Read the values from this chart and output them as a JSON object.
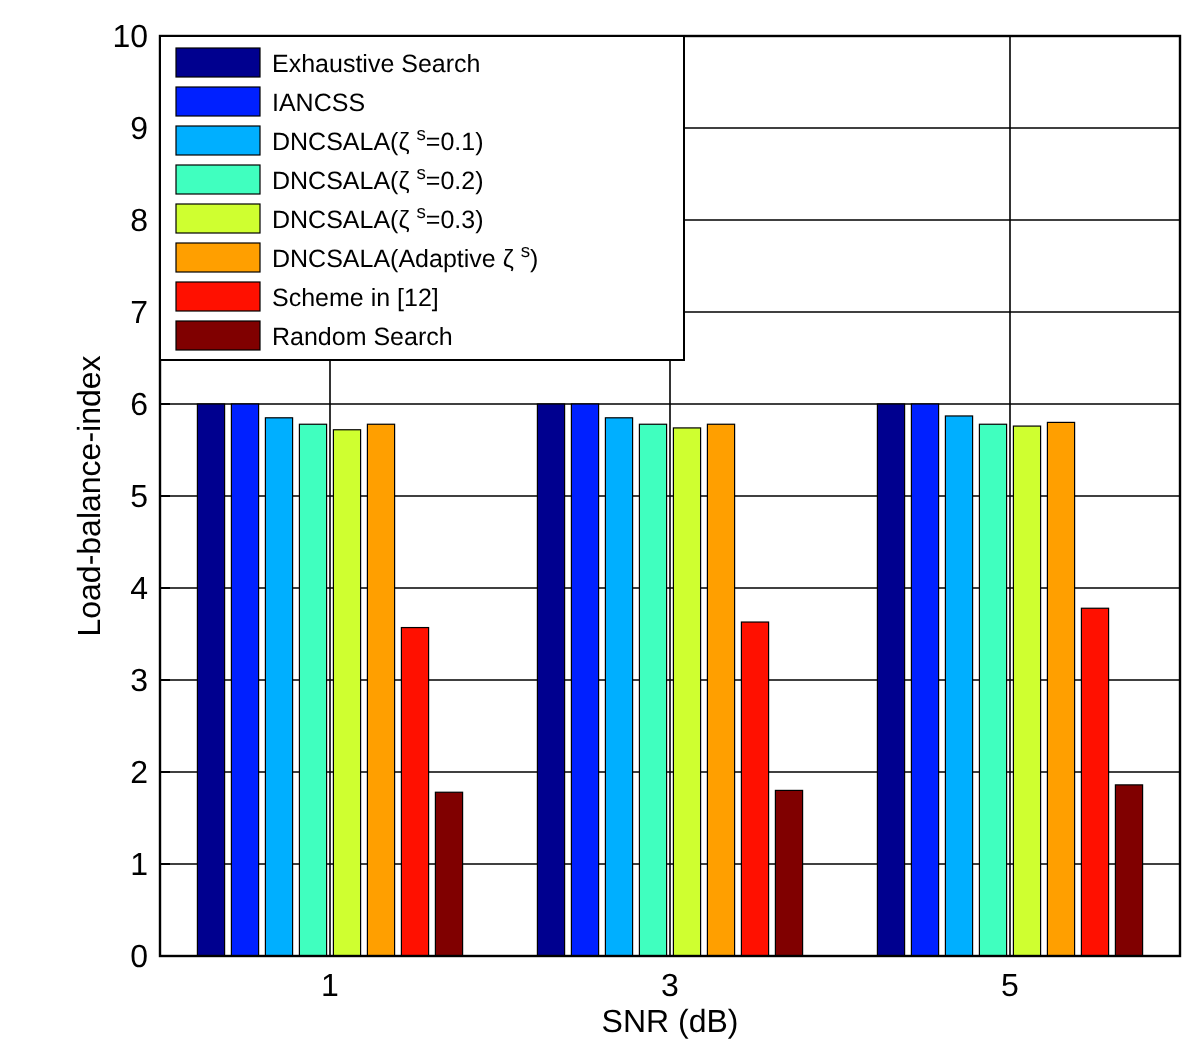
{
  "chart_data": {
    "type": "bar",
    "xlabel": "SNR (dB)",
    "ylabel": "Load-balance-index",
    "categories": [
      "1",
      "3",
      "5"
    ],
    "series": [
      {
        "name": "Exhaustive Search",
        "color": "#00008f",
        "values": [
          6,
          6,
          6
        ]
      },
      {
        "name": "IANCSS",
        "color": "#0020ff",
        "values": [
          6,
          6,
          6
        ]
      },
      {
        "name": "DNCSALA(ζ $^{s}$=0.1)",
        "color": "#00afff",
        "values": [
          5.85,
          5.85,
          5.87
        ]
      },
      {
        "name": "DNCSALA(ζ $^{s}$=0.2)",
        "color": "#40ffbf",
        "values": [
          5.78,
          5.78,
          5.78
        ]
      },
      {
        "name": "DNCSALA(ζ $^{s}$=0.3)",
        "color": "#cfff30",
        "values": [
          5.72,
          5.74,
          5.76
        ]
      },
      {
        "name": "DNCSALA(Adaptive ζ $^{s}$)",
        "color": "#ff9f00",
        "values": [
          5.78,
          5.78,
          5.8
        ]
      },
      {
        "name": "Scheme in [12]",
        "color": "#ff1000",
        "values": [
          3.57,
          3.63,
          3.78
        ]
      },
      {
        "name": "Random Search",
        "color": "#800000",
        "values": [
          1.78,
          1.8,
          1.86
        ]
      }
    ],
    "ylim": [
      0,
      10
    ],
    "yticks": [
      0,
      1,
      2,
      3,
      4,
      5,
      6,
      7,
      8,
      9,
      10
    ],
    "grid": true,
    "legend": "top left"
  }
}
